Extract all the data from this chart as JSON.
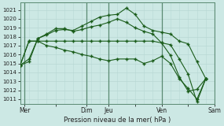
{
  "bg_color": "#cce8e4",
  "grid_color_minor": "#b8d8d4",
  "grid_color_major": "#99c4be",
  "line_color": "#1a5c1a",
  "xlabel": "Pression niveau de la mer( hPa )",
  "ylim": [
    1010.5,
    1021.8
  ],
  "xlim": [
    0,
    22
  ],
  "yticks": [
    1011,
    1012,
    1013,
    1014,
    1015,
    1016,
    1017,
    1018,
    1019,
    1020,
    1021
  ],
  "xtick_labels": [
    "Mer",
    "",
    "Dim",
    "Jeu",
    "",
    "Ven",
    "",
    "Sam"
  ],
  "xtick_positions": [
    0.5,
    4,
    7.5,
    10,
    13,
    16,
    19,
    22
  ],
  "vlines_dark": [
    0.5,
    7.5,
    10,
    16,
    22
  ],
  "n_points": 22,
  "series": [
    [
      1014.8,
      1015.2,
      1017.8,
      1018.2,
      1018.7,
      1018.8,
      1018.7,
      1019.2,
      1019.7,
      1020.2,
      1020.4,
      1020.5,
      1021.2,
      1020.5,
      1019.2,
      1018.7,
      1018.5,
      1018.3,
      1017.5,
      1017.2,
      1015.2,
      1013.3
    ],
    [
      1014.8,
      1015.5,
      1017.8,
      1018.3,
      1018.9,
      1018.9,
      1018.6,
      1018.8,
      1019.1,
      1019.3,
      1019.6,
      1020.0,
      1019.6,
      1019.0,
      1018.6,
      1018.3,
      1017.3,
      1015.9,
      1013.5,
      1011.9,
      1012.1,
      1013.3
    ],
    [
      1014.8,
      1017.5,
      1017.5,
      1017.5,
      1017.5,
      1017.5,
      1017.5,
      1017.5,
      1017.5,
      1017.5,
      1017.5,
      1017.5,
      1017.5,
      1017.5,
      1017.5,
      1017.5,
      1017.3,
      1017.1,
      1015.5,
      1013.8,
      1010.7,
      1013.3
    ],
    [
      1014.8,
      1017.5,
      1017.5,
      1017.0,
      1016.8,
      1016.5,
      1016.3,
      1016.0,
      1015.8,
      1015.5,
      1015.3,
      1015.5,
      1015.5,
      1015.5,
      1015.0,
      1015.3,
      1015.8,
      1015.0,
      1013.3,
      1012.2,
      1011.0,
      1013.3
    ]
  ]
}
